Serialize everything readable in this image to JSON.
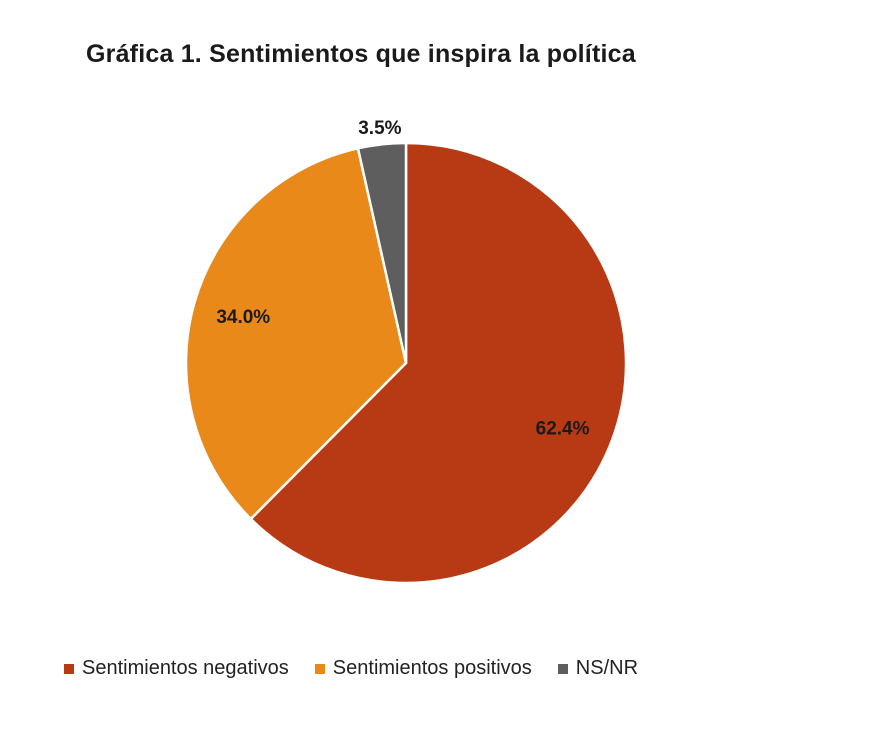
{
  "chart_data": {
    "type": "pie",
    "title": "Gráfica 1. Sentimientos que inspira la política",
    "categories": [
      "Sentimientos negativos",
      "Sentimientos positivos",
      "NS/NR"
    ],
    "values": [
      62.4,
      34.0,
      3.5
    ],
    "data_labels": [
      "62.4%",
      "34.0%",
      "3.5%"
    ],
    "colors": [
      "#B83A14",
      "#E8891A",
      "#5E5E5E"
    ],
    "start_angle": "top, clockwise",
    "legend_position": "bottom"
  }
}
